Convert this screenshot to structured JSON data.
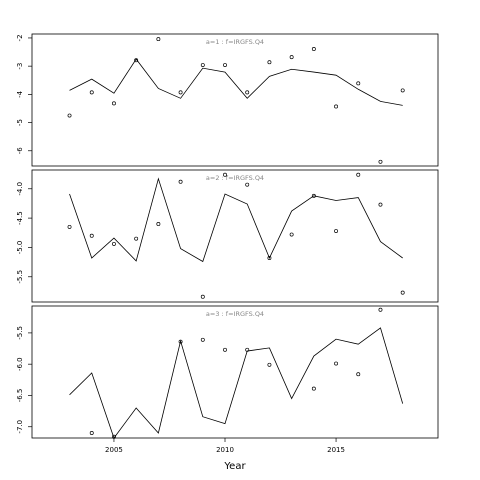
{
  "chart_data": [
    {
      "type": "line",
      "title": "a=1  :  f=IRGFS.Q4",
      "x": [
        2003,
        2004,
        2005,
        2006,
        2007,
        2008,
        2009,
        2010,
        2011,
        2012,
        2013,
        2014,
        2015,
        2016,
        2017,
        2018
      ],
      "series": [
        {
          "mode": "line",
          "color": "#000000",
          "values": [
            -3.86,
            -3.46,
            -3.96,
            -2.75,
            -3.79,
            -4.14,
            -3.07,
            -3.21,
            -4.14,
            -3.36,
            -3.11,
            -3.21,
            -3.32,
            -3.82,
            -4.25,
            -4.39
          ]
        },
        {
          "mode": "markers",
          "color": "#000000",
          "values": [
            -4.75,
            -3.93,
            -4.32,
            -2.79,
            -2.04,
            -3.93,
            -2.96,
            -2.96,
            -3.93,
            -2.86,
            -2.68,
            -2.39,
            -4.43,
            -3.61,
            -6.39,
            -3.86
          ]
        }
      ],
      "xlim": [
        2001.31,
        2019.59
      ],
      "ylim": [
        -1.86,
        -6.54
      ],
      "yticks": [
        -2,
        -3,
        -4,
        -5,
        -6
      ]
    },
    {
      "type": "line",
      "title": "a=2  :  f=IRGFS.Q4",
      "x": [
        2003,
        2004,
        2005,
        2006,
        2007,
        2008,
        2009,
        2010,
        2011,
        2012,
        2013,
        2014,
        2015,
        2016,
        2017,
        2018
      ],
      "series": [
        {
          "mode": "line",
          "color": "#000000",
          "values": [
            -4.09,
            -5.18,
            -4.84,
            -5.23,
            -3.83,
            -5.02,
            -5.24,
            -4.09,
            -4.26,
            -5.18,
            -4.38,
            -4.12,
            -4.2,
            -4.15,
            -4.9,
            -5.18
          ]
        },
        {
          "mode": "markers",
          "color": "#000000",
          "values": [
            -4.65,
            -4.8,
            -4.94,
            -4.85,
            -4.6,
            -3.88,
            -5.84,
            -3.76,
            -3.93,
            -5.18,
            -4.78,
            -4.12,
            -4.72,
            -3.76,
            -4.27,
            -5.77
          ]
        }
      ],
      "xlim": [
        2001.31,
        2019.59
      ],
      "ylim": [
        -3.68,
        -5.93
      ],
      "yticks": [
        {
          "value": -4,
          "label": "-4.0"
        },
        -4.5,
        {
          "value": -5,
          "label": "-5.0"
        },
        -5.5
      ]
    },
    {
      "type": "line",
      "title": "a=3  :  f=IRGFS.Q4",
      "x": [
        2003,
        2004,
        2005,
        2006,
        2007,
        2008,
        2009,
        2010,
        2011,
        2012,
        2013,
        2014,
        2015,
        2016,
        2017,
        2018
      ],
      "series": [
        {
          "mode": "line",
          "color": "#000000",
          "values": [
            -6.49,
            -6.14,
            -7.18,
            -6.7,
            -7.1,
            -5.63,
            -6.84,
            -6.95,
            -5.79,
            -5.74,
            -6.55,
            -5.87,
            -5.6,
            -5.68,
            -5.42,
            -6.63
          ]
        },
        {
          "mode": "markers",
          "color": "#000000",
          "values": [
            null,
            -7.1,
            -7.16,
            null,
            null,
            -5.64,
            -5.61,
            -5.77,
            -5.77,
            -6.01,
            null,
            -6.39,
            -5.99,
            -6.16,
            -5.13,
            null
          ]
        }
      ],
      "xlim": [
        2001.31,
        2019.59
      ],
      "ylim": [
        -5.07,
        -7.18
      ],
      "yticks": [
        -5.5,
        {
          "value": -6,
          "label": "-6.0"
        },
        -6.5,
        {
          "value": -7,
          "label": "-7.0"
        }
      ],
      "xticks": [
        2005,
        2010,
        2015
      ],
      "xlabel": "Year"
    }
  ]
}
